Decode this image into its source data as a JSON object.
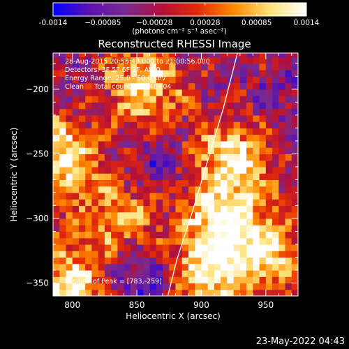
{
  "chart_data": {
    "type": "heatmap",
    "title": "Reconstructed RHESSI Image",
    "xlabel": "Heliocentric X (arcsec)",
    "ylabel": "Heliocentric Y (arcsec)",
    "xlim": [
      785,
      975
    ],
    "ylim": [
      -360,
      -172
    ],
    "x_ticks": [
      800,
      850,
      900,
      950
    ],
    "y_ticks": [
      -200,
      -250,
      -300,
      -350
    ],
    "colorbar": {
      "range": [
        -0.0014,
        0.0014
      ],
      "ticks": [
        -0.0014,
        -0.00085,
        -0.00028,
        0.00028,
        0.00085,
        0.0014
      ],
      "tick_labels": [
        "-0.0014",
        "−0.00085",
        "−0.00028",
        "0.00028",
        "0.00085",
        "0.0014"
      ],
      "units_label": "(photons cm⁻² s⁻¹ asec⁻²)",
      "colormap": [
        "#0000ff",
        "#5a12b0",
        "#7a2a8f",
        "#b0103a",
        "#e42a08",
        "#ff8a00",
        "#ffe27a",
        "#ffffff"
      ]
    },
    "annotations": [
      "28-Aug-2015 20:55:48.000 to 21:00:56.000",
      "Detectors: 3F 5F 6F 7F, Att 0",
      "Energy Range: 25.0 - 50.0 keV",
      "Clean     Total counts: 1.94E+04"
    ],
    "peak_label": "Position of Peak = [783,-259]",
    "limb_curve": [
      [
        928,
        -172
      ],
      [
        917,
        -215
      ],
      [
        905,
        -255
      ],
      [
        893,
        -295
      ],
      [
        881,
        -332
      ],
      [
        874,
        -360
      ]
    ],
    "bright_regions": [
      {
        "x": 788,
        "y": -250,
        "value": 0.0014
      },
      {
        "x": 792,
        "y": -352,
        "value": 0.0012
      },
      {
        "x": 855,
        "y": -198,
        "value": 0.0011
      },
      {
        "x": 923,
        "y": -255,
        "value": 0.0012
      },
      {
        "x": 918,
        "y": -305,
        "value": 0.0011
      },
      {
        "x": 905,
        "y": -345,
        "value": 0.0011
      },
      {
        "x": 835,
        "y": -300,
        "value": 0.0008
      },
      {
        "x": 955,
        "y": -325,
        "value": 0.0008
      }
    ],
    "dim_regions": [
      {
        "x": 858,
        "y": -345,
        "value": -0.0012
      },
      {
        "x": 863,
        "y": -258,
        "value": -0.0008
      },
      {
        "x": 810,
        "y": -215,
        "value": -0.0006
      },
      {
        "x": 960,
        "y": -208,
        "value": -0.0006
      }
    ]
  },
  "footer_timestamp": "23-May-2022 04:43"
}
